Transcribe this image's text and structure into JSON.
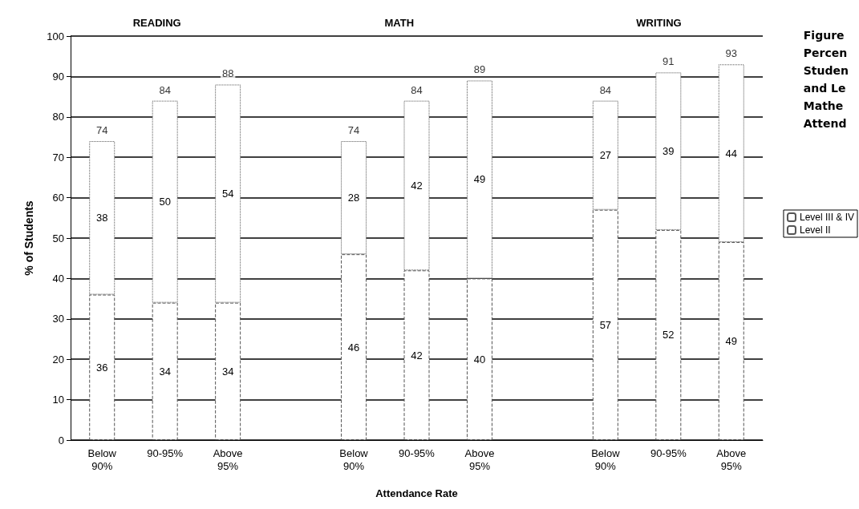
{
  "chart_data": {
    "type": "bar",
    "stacked": true,
    "title": "Figure\nPercen\nStuden\nand Le\nMathe\nAttend",
    "xlabel": "Attendance Rate",
    "ylabel": "% of Students",
    "categories": [
      "Below\n90%",
      "90-95%",
      "Above\n95%",
      null,
      "Below\n90%",
      "90-95%",
      "Above\n95%",
      null,
      "Below\n90%",
      "90-95%",
      "Above\n95%"
    ],
    "series": [
      {
        "name": "Level II",
        "color": "#ffffff",
        "values": [
          36,
          34,
          34,
          null,
          46,
          42,
          40,
          null,
          57,
          52,
          49
        ]
      },
      {
        "name": "Level III & IV",
        "color": "#ffffff",
        "values": [
          38,
          50,
          54,
          null,
          28,
          42,
          49,
          null,
          27,
          39,
          44
        ]
      }
    ],
    "totals": [
      "74",
      "84",
      "88",
      null,
      "74",
      "84",
      "89",
      null,
      "84",
      "91",
      "93"
    ],
    "data_labels": true,
    "annotations": [
      "READING",
      "MATH",
      "WRITING"
    ],
    "ylim": [
      0,
      100
    ],
    "yticks": [
      0,
      10,
      20,
      30,
      40,
      50,
      60,
      70,
      80,
      90,
      100
    ],
    "grid": "y",
    "legend": "right"
  }
}
